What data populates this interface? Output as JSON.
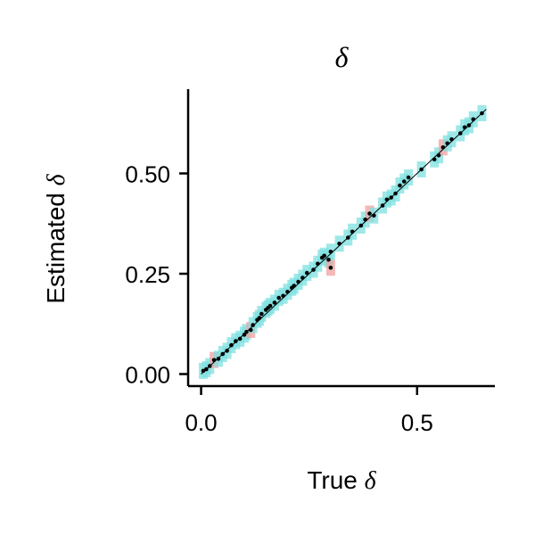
{
  "chart_data": {
    "type": "scatter",
    "title": "δ",
    "xlabel_text": "True",
    "xlabel_symbol": "δ",
    "ylabel_text": "Estimated",
    "ylabel_symbol": "δ",
    "xlim": [
      -0.03,
      0.68
    ],
    "ylim": [
      -0.03,
      0.71
    ],
    "xticks": [
      0.0,
      0.5
    ],
    "xtick_labels": [
      "0.0",
      "0.5"
    ],
    "yticks": [
      0.0,
      0.25,
      0.5
    ],
    "ytick_labels": [
      "0.00",
      "0.25",
      "0.50"
    ],
    "identity_line": [
      0.0,
      0.66
    ],
    "grid": false,
    "colors": {
      "estimate": "#000000",
      "interval_good": "#7fe0e0",
      "interval_bad": "#f0a0a0",
      "axis": "#000000"
    },
    "points": [
      {
        "x": 0.005,
        "y": 0.008
      },
      {
        "x": 0.012,
        "y": 0.012
      },
      {
        "x": 0.02,
        "y": 0.02
      },
      {
        "x": 0.03,
        "y": 0.035,
        "miss": true
      },
      {
        "x": 0.04,
        "y": 0.038
      },
      {
        "x": 0.05,
        "y": 0.05
      },
      {
        "x": 0.06,
        "y": 0.058
      },
      {
        "x": 0.07,
        "y": 0.072
      },
      {
        "x": 0.08,
        "y": 0.082
      },
      {
        "x": 0.09,
        "y": 0.088
      },
      {
        "x": 0.1,
        "y": 0.098
      },
      {
        "x": 0.105,
        "y": 0.105
      },
      {
        "x": 0.115,
        "y": 0.11,
        "miss": true
      },
      {
        "x": 0.12,
        "y": 0.122
      },
      {
        "x": 0.13,
        "y": 0.135
      },
      {
        "x": 0.135,
        "y": 0.14
      },
      {
        "x": 0.14,
        "y": 0.15
      },
      {
        "x": 0.15,
        "y": 0.16
      },
      {
        "x": 0.155,
        "y": 0.165
      },
      {
        "x": 0.16,
        "y": 0.17
      },
      {
        "x": 0.17,
        "y": 0.178
      },
      {
        "x": 0.18,
        "y": 0.19
      },
      {
        "x": 0.19,
        "y": 0.195
      },
      {
        "x": 0.2,
        "y": 0.205
      },
      {
        "x": 0.21,
        "y": 0.215
      },
      {
        "x": 0.215,
        "y": 0.22
      },
      {
        "x": 0.225,
        "y": 0.23
      },
      {
        "x": 0.235,
        "y": 0.24
      },
      {
        "x": 0.245,
        "y": 0.252
      },
      {
        "x": 0.26,
        "y": 0.26
      },
      {
        "x": 0.27,
        "y": 0.275
      },
      {
        "x": 0.28,
        "y": 0.29
      },
      {
        "x": 0.285,
        "y": 0.295
      },
      {
        "x": 0.295,
        "y": 0.285
      },
      {
        "x": 0.3,
        "y": 0.265,
        "miss": true
      },
      {
        "x": 0.3,
        "y": 0.305
      },
      {
        "x": 0.32,
        "y": 0.325
      },
      {
        "x": 0.34,
        "y": 0.34
      },
      {
        "x": 0.35,
        "y": 0.355
      },
      {
        "x": 0.37,
        "y": 0.37
      },
      {
        "x": 0.38,
        "y": 0.385
      },
      {
        "x": 0.39,
        "y": 0.4,
        "miss": true
      },
      {
        "x": 0.4,
        "y": 0.395
      },
      {
        "x": 0.42,
        "y": 0.42
      },
      {
        "x": 0.43,
        "y": 0.435
      },
      {
        "x": 0.44,
        "y": 0.44
      },
      {
        "x": 0.45,
        "y": 0.45
      },
      {
        "x": 0.46,
        "y": 0.47
      },
      {
        "x": 0.47,
        "y": 0.48
      },
      {
        "x": 0.48,
        "y": 0.49
      },
      {
        "x": 0.51,
        "y": 0.51
      },
      {
        "x": 0.54,
        "y": 0.535
      },
      {
        "x": 0.55,
        "y": 0.545
      },
      {
        "x": 0.56,
        "y": 0.565,
        "miss": true
      },
      {
        "x": 0.57,
        "y": 0.575
      },
      {
        "x": 0.58,
        "y": 0.585
      },
      {
        "x": 0.6,
        "y": 0.6
      },
      {
        "x": 0.61,
        "y": 0.615
      },
      {
        "x": 0.62,
        "y": 0.62
      },
      {
        "x": 0.63,
        "y": 0.635
      },
      {
        "x": 0.65,
        "y": 0.65
      }
    ]
  }
}
